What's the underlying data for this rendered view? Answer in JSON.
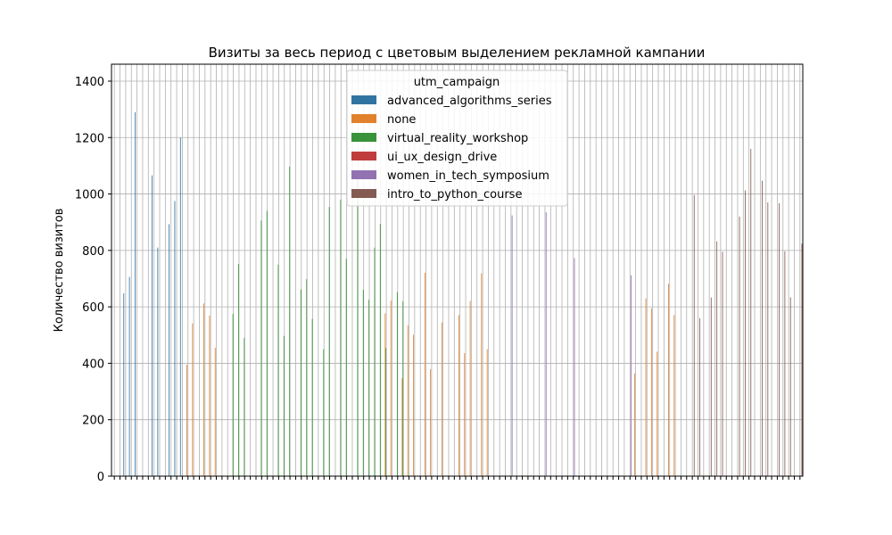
{
  "chart_data": {
    "type": "bar",
    "title": "Визиты за весь период с цветовым выделением рекламной кампании",
    "xlabel": "",
    "ylabel": "Количество визитов",
    "ylim": [
      0,
      1460
    ],
    "yticks": [
      0,
      200,
      400,
      600,
      800,
      1000,
      1200,
      1400
    ],
    "grid": true,
    "legend_placement": "top-center",
    "legend_title": "utm_campaign",
    "category_count": 122,
    "series": [
      {
        "name": "advanced_algorithms_series",
        "color": "#3274a1",
        "points": [
          [
            2,
            648
          ],
          [
            3,
            706
          ],
          [
            4,
            1290
          ],
          [
            7,
            1066
          ],
          [
            8,
            810
          ],
          [
            10,
            893
          ],
          [
            11,
            975
          ],
          [
            12,
            1200
          ]
        ]
      },
      {
        "name": "none",
        "color": "#e1812c",
        "points": [
          [
            13,
            395
          ],
          [
            14,
            541
          ],
          [
            16,
            612
          ],
          [
            17,
            569
          ],
          [
            18,
            455
          ],
          [
            58,
            545
          ],
          [
            61,
            571
          ],
          [
            62,
            436
          ],
          [
            63,
            621
          ],
          [
            65,
            719
          ],
          [
            66,
            450
          ],
          [
            92,
            364
          ],
          [
            94,
            630
          ],
          [
            95,
            595
          ],
          [
            96,
            441
          ],
          [
            98,
            682
          ],
          [
            99,
            571
          ],
          [
            48,
            577
          ],
          [
            49,
            622
          ],
          [
            51,
            347
          ],
          [
            52,
            535
          ],
          [
            53,
            501
          ],
          [
            55,
            721
          ],
          [
            56,
            379
          ]
        ]
      },
      {
        "name": "virtual_reality_workshop",
        "color": "#3a923a",
        "points": [
          [
            21,
            575
          ],
          [
            22,
            752
          ],
          [
            23,
            490
          ],
          [
            26,
            906
          ],
          [
            27,
            940
          ],
          [
            29,
            750
          ],
          [
            30,
            497
          ],
          [
            31,
            1097
          ],
          [
            33,
            662
          ],
          [
            34,
            698
          ],
          [
            35,
            557
          ],
          [
            37,
            450
          ],
          [
            38,
            954
          ],
          [
            40,
            980
          ],
          [
            41,
            770
          ],
          [
            43,
            1060
          ],
          [
            44,
            660
          ],
          [
            45,
            625
          ],
          [
            46,
            810
          ],
          [
            47,
            894
          ],
          [
            48,
            454
          ],
          [
            50,
            652
          ],
          [
            51,
            620
          ]
        ]
      },
      {
        "name": "ui_ux_design_drive",
        "color": "#c03d3e",
        "points": []
      },
      {
        "name": "women_in_tech_symposium",
        "color": "#9372b2",
        "points": [
          [
            70,
            924
          ],
          [
            76,
            935
          ],
          [
            81,
            773
          ],
          [
            91,
            712
          ]
        ]
      },
      {
        "name": "intro_to_python_course",
        "color": "#845b53",
        "points": [
          [
            102,
            996
          ],
          [
            103,
            560
          ],
          [
            105,
            633
          ],
          [
            106,
            832
          ],
          [
            107,
            795
          ],
          [
            110,
            920
          ],
          [
            111,
            1013
          ],
          [
            112,
            1160
          ],
          [
            114,
            1047
          ],
          [
            115,
            970
          ],
          [
            117,
            967
          ],
          [
            118,
            797
          ],
          [
            119,
            634
          ],
          [
            121,
            824
          ]
        ]
      }
    ]
  }
}
